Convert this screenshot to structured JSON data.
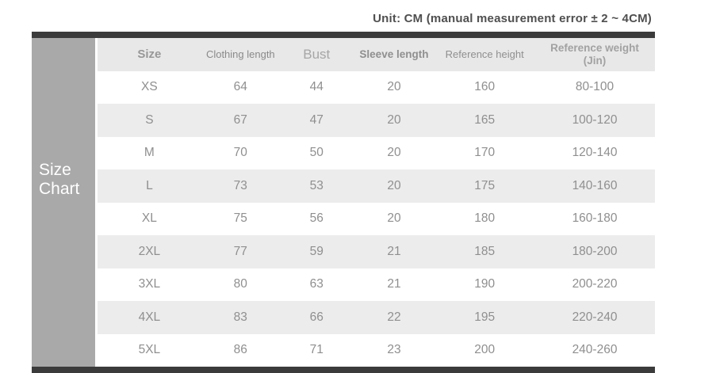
{
  "unit_note": "Unit: CM (manual measurement error ± 2 ~ 4CM)",
  "sidebar": {
    "title_line1": "Size",
    "title_line2": "Chart"
  },
  "colors": {
    "bar_dark": "#3b3b3b",
    "sidebar_gray": "#a9a9a9",
    "header_bg": "#e8e8e8",
    "stripe_bg": "#ececec",
    "cell_text": "#8f8f8f",
    "unit_text": "#4f4f4f"
  },
  "chart_data": {
    "type": "table",
    "title": "Size Chart",
    "unit": "CM",
    "columns": [
      "Size",
      "Clothing length",
      "Bust",
      "Sleeve length",
      "Reference height",
      "Reference weight\n(Jin)"
    ],
    "rows": [
      [
        "XS",
        "64",
        "44",
        "20",
        "160",
        "80-100"
      ],
      [
        "S",
        "67",
        "47",
        "20",
        "165",
        "100-120"
      ],
      [
        "M",
        "70",
        "50",
        "20",
        "170",
        "120-140"
      ],
      [
        "L",
        "73",
        "53",
        "20",
        "175",
        "140-160"
      ],
      [
        "XL",
        "75",
        "56",
        "20",
        "180",
        "160-180"
      ],
      [
        "2XL",
        "77",
        "59",
        "21",
        "185",
        "180-200"
      ],
      [
        "3XL",
        "80",
        "63",
        "21",
        "190",
        "200-220"
      ],
      [
        "4XL",
        "83",
        "66",
        "22",
        "195",
        "220-240"
      ],
      [
        "5XL",
        "86",
        "71",
        "23",
        "200",
        "240-260"
      ]
    ]
  }
}
